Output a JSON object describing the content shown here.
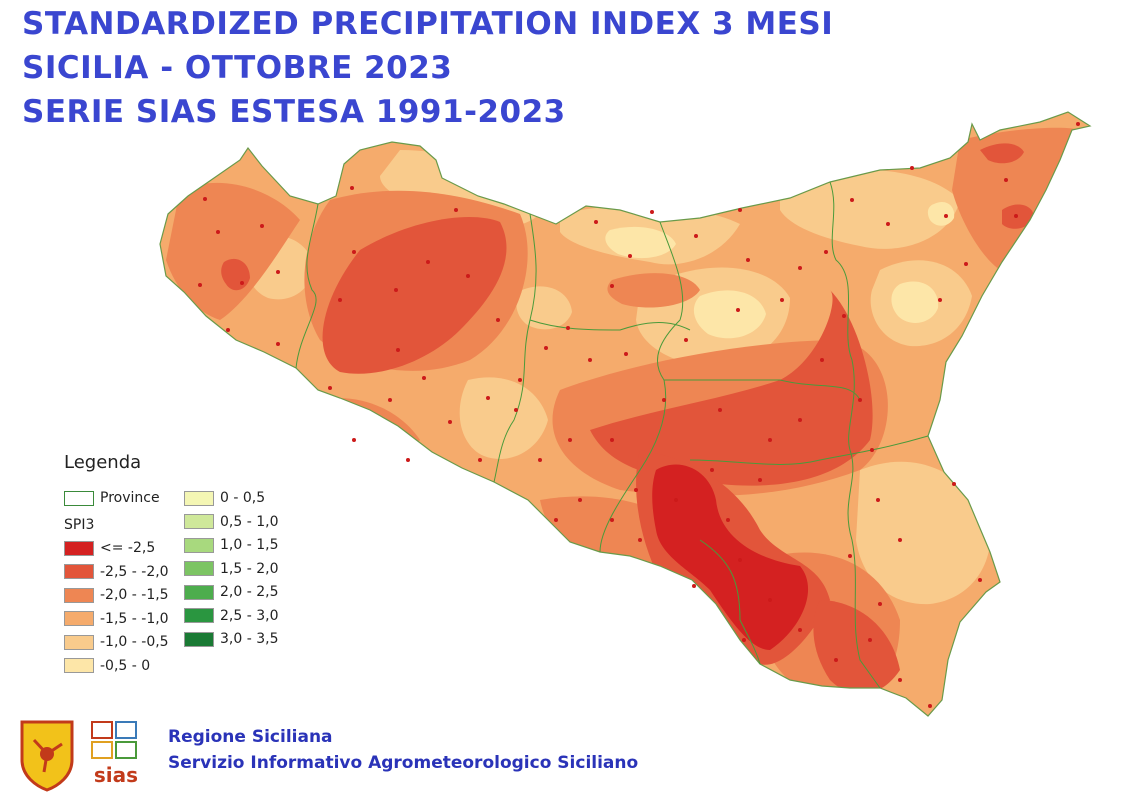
{
  "title": {
    "line1": "STANDARDIZED PRECIPITATION INDEX 3 MESI",
    "line2": "SICILIA - OTTOBRE 2023",
    "line3": "SERIE SIAS ESTESA 1991-2023"
  },
  "legend": {
    "title": "Legenda",
    "provinces_label": "Province",
    "spi_label": "SPI3",
    "classes_left": [
      {
        "label": "<= -2,5",
        "color": "#d42121"
      },
      {
        "label": "-2,5 - -2,0",
        "color": "#e2553a"
      },
      {
        "label": "-2,0 - -1,5",
        "color": "#ee8653"
      },
      {
        "label": "-1,5 - -1,0",
        "color": "#f5ab6c"
      },
      {
        "label": "-1,0 - -0,5",
        "color": "#f9cb8c"
      },
      {
        "label": "-0,5 - 0",
        "color": "#fde6a8"
      }
    ],
    "classes_right": [
      {
        "label": "0 - 0,5",
        "color": "#f4f6b4"
      },
      {
        "label": "0,5 - 1,0",
        "color": "#cfe89a"
      },
      {
        "label": "1,0 - 1,5",
        "color": "#a8d97e"
      },
      {
        "label": "1,5 - 2,0",
        "color": "#7cc463"
      },
      {
        "label": "2,0 - 2,5",
        "color": "#4dad4d"
      },
      {
        "label": "2,5 - 3,0",
        "color": "#2a9640"
      },
      {
        "label": "3,0 - 3,5",
        "color": "#1a7a34"
      }
    ],
    "province_border_color": "#3a8a3a"
  },
  "footer": {
    "org_line1": "Regione Siciliana",
    "org_line2": "Servizio Informativo Agrometeorologico Siciliano",
    "logo_text": "sias"
  }
}
